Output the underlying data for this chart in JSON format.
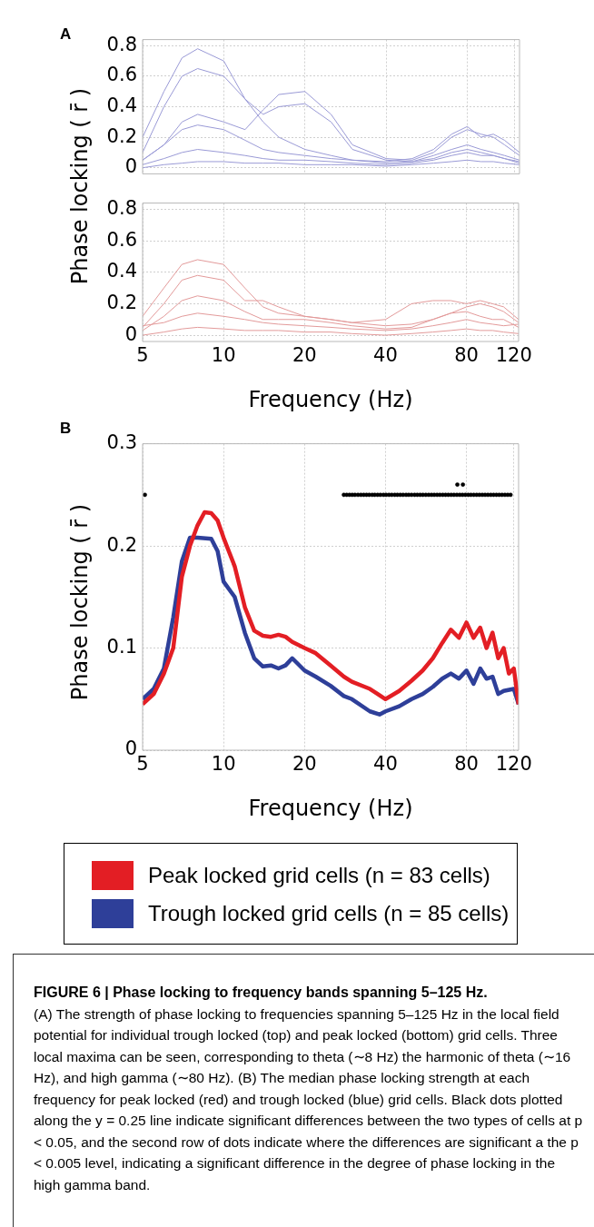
{
  "chart_data": [
    {
      "type": "line",
      "annotations": [
        "A"
      ],
      "ylabel": "Phase locking ( r̄ )",
      "tick_labels": "y",
      "log": "x",
      "grid": true,
      "x": [
        5,
        6,
        7,
        8,
        10,
        12,
        14,
        16,
        20,
        25,
        30,
        40,
        50,
        60,
        70,
        80,
        90,
        100,
        110,
        125
      ],
      "xlim": [
        5,
        125
      ],
      "xticks": [
        5,
        10,
        20,
        40,
        80,
        120
      ],
      "ylim": [
        -0.04,
        0.84
      ],
      "yticks": [
        0,
        0.2,
        0.4,
        0.6,
        0.8
      ],
      "series": [
        {
          "color": "#9a9ad6",
          "values": [
            0.2,
            0.5,
            0.72,
            0.78,
            0.7,
            0.45,
            0.3,
            0.2,
            0.12,
            0.08,
            0.05,
            0.03,
            0.04,
            0.06,
            0.1,
            0.12,
            0.1,
            0.08,
            0.06,
            0.04
          ]
        },
        {
          "color": "#9a9ad6",
          "values": [
            0.1,
            0.4,
            0.6,
            0.65,
            0.6,
            0.45,
            0.35,
            0.4,
            0.42,
            0.3,
            0.12,
            0.05,
            0.04,
            0.08,
            0.12,
            0.15,
            0.12,
            0.1,
            0.08,
            0.05
          ]
        },
        {
          "color": "#9a9ad6",
          "values": [
            0.05,
            0.15,
            0.3,
            0.35,
            0.3,
            0.25,
            0.38,
            0.48,
            0.5,
            0.35,
            0.15,
            0.06,
            0.05,
            0.1,
            0.2,
            0.25,
            0.22,
            0.2,
            0.15,
            0.08
          ]
        },
        {
          "color": "#9a9ad6",
          "values": [
            0.05,
            0.15,
            0.25,
            0.28,
            0.25,
            0.18,
            0.12,
            0.1,
            0.08,
            0.06,
            0.05,
            0.04,
            0.06,
            0.12,
            0.22,
            0.27,
            0.2,
            0.22,
            0.18,
            0.1
          ]
        },
        {
          "color": "#9a9ad6",
          "values": [
            0.02,
            0.06,
            0.1,
            0.12,
            0.1,
            0.08,
            0.06,
            0.05,
            0.05,
            0.04,
            0.03,
            0.02,
            0.03,
            0.05,
            0.08,
            0.1,
            0.08,
            0.08,
            0.06,
            0.03
          ]
        },
        {
          "color": "#9a9ad6",
          "values": [
            0.0,
            0.02,
            0.03,
            0.04,
            0.04,
            0.03,
            0.03,
            0.03,
            0.02,
            0.02,
            0.02,
            0.01,
            0.02,
            0.03,
            0.04,
            0.05,
            0.04,
            0.04,
            0.03,
            0.02
          ]
        }
      ]
    },
    {
      "type": "line",
      "xlabel": "Frequency (Hz)",
      "log": "x",
      "grid": true,
      "x": [
        5,
        6,
        7,
        8,
        10,
        12,
        14,
        16,
        20,
        25,
        30,
        40,
        50,
        60,
        70,
        80,
        90,
        100,
        110,
        125
      ],
      "xlim": [
        5,
        125
      ],
      "xticks": [
        5,
        10,
        20,
        40,
        80,
        120
      ],
      "ylim": [
        -0.04,
        0.84
      ],
      "yticks": [
        0,
        0.2,
        0.4,
        0.6,
        0.8
      ],
      "series": [
        {
          "color": "#e39a9a",
          "values": [
            0.12,
            0.3,
            0.45,
            0.48,
            0.45,
            0.3,
            0.18,
            0.14,
            0.12,
            0.1,
            0.08,
            0.06,
            0.07,
            0.1,
            0.14,
            0.18,
            0.2,
            0.18,
            0.15,
            0.08
          ]
        },
        {
          "color": "#e39a9a",
          "values": [
            0.05,
            0.2,
            0.35,
            0.38,
            0.35,
            0.22,
            0.22,
            0.18,
            0.12,
            0.1,
            0.08,
            0.1,
            0.2,
            0.22,
            0.22,
            0.2,
            0.22,
            0.2,
            0.18,
            0.1
          ]
        },
        {
          "color": "#e39a9a",
          "values": [
            0.03,
            0.12,
            0.22,
            0.25,
            0.22,
            0.15,
            0.1,
            0.1,
            0.1,
            0.08,
            0.06,
            0.04,
            0.05,
            0.1,
            0.14,
            0.15,
            0.12,
            0.1,
            0.1,
            0.05
          ]
        },
        {
          "color": "#e39a9a",
          "values": [
            0.06,
            0.08,
            0.12,
            0.14,
            0.12,
            0.1,
            0.08,
            0.07,
            0.06,
            0.05,
            0.04,
            0.03,
            0.04,
            0.06,
            0.08,
            0.1,
            0.08,
            0.07,
            0.06,
            0.07
          ]
        },
        {
          "color": "#e39a9a",
          "values": [
            0.0,
            0.02,
            0.04,
            0.05,
            0.04,
            0.03,
            0.03,
            0.03,
            0.02,
            0.02,
            0.01,
            0.0,
            0.01,
            0.02,
            0.03,
            0.04,
            0.03,
            0.03,
            0.02,
            0.01
          ]
        }
      ]
    },
    {
      "type": "line",
      "annotations": [
        "B",
        "FIGURE 6 | Phase locking to frequency bands spanning 5–125 Hz.",
        "(A) The strength of phase locking to frequencies spanning 5–125 Hz in the local field potential for individual trough locked (top) and peak locked (bottom) grid cells. Three local maxima can be seen, corresponding to theta (∼8 Hz) the harmonic of theta (∼16 Hz), and high gamma (∼80 Hz). (B) The median phase locking strength at each frequency for peak locked (red) and trough locked (blue) grid cells. Black dots plotted along the y = 0.25 line indicate significant differences between the two types of cells at p < 0.05, and the second row of dots indicate where the differences are significant a the p < 0.005 level, indicating a significant difference in the degree of phase locking in the high gamma band."
      ],
      "ylabel": "Phase locking ( r̄ )",
      "xlabel": "Frequency (Hz)",
      "log": "x",
      "grid": true,
      "legend": "bottom",
      "xlim": [
        5,
        125
      ],
      "xticks": [
        5,
        10,
        20,
        40,
        80,
        120
      ],
      "ylim": [
        0,
        0.3
      ],
      "yticks": [
        0,
        0.1,
        0.2,
        0.3
      ],
      "series": [
        {
          "name": "Peak locked grid cells (n = 83 cells)",
          "color": "#e31e24",
          "x": [
            5,
            5.5,
            6,
            6.5,
            7,
            7.5,
            8,
            8.5,
            9,
            9.5,
            10,
            11,
            12,
            13,
            14,
            15,
            16,
            17,
            18,
            20,
            22,
            25,
            28,
            30,
            35,
            40,
            45,
            50,
            55,
            60,
            65,
            70,
            75,
            80,
            85,
            90,
            95,
            100,
            105,
            110,
            115,
            120,
            125
          ],
          "values": [
            0.045,
            0.055,
            0.075,
            0.1,
            0.17,
            0.2,
            0.22,
            0.233,
            0.232,
            0.225,
            0.208,
            0.18,
            0.14,
            0.117,
            0.112,
            0.111,
            0.113,
            0.111,
            0.106,
            0.1,
            0.095,
            0.083,
            0.072,
            0.067,
            0.06,
            0.05,
            0.058,
            0.068,
            0.078,
            0.09,
            0.105,
            0.118,
            0.11,
            0.125,
            0.11,
            0.12,
            0.1,
            0.115,
            0.09,
            0.1,
            0.075,
            0.08,
            0.045
          ]
        },
        {
          "name": "Trough locked grid cells (n = 85 cells)",
          "color": "#2e3f99",
          "x": [
            5,
            5.5,
            6,
            6.5,
            7,
            7.5,
            8,
            9,
            9.5,
            10,
            11,
            12,
            13,
            14,
            15,
            16,
            17,
            18,
            20,
            22,
            25,
            28,
            30,
            35,
            38,
            40,
            45,
            50,
            55,
            60,
            65,
            70,
            75,
            80,
            85,
            90,
            95,
            100,
            105,
            110,
            120,
            125
          ],
          "values": [
            0.05,
            0.06,
            0.08,
            0.13,
            0.185,
            0.208,
            0.208,
            0.207,
            0.195,
            0.165,
            0.15,
            0.115,
            0.09,
            0.082,
            0.083,
            0.08,
            0.083,
            0.09,
            0.078,
            0.072,
            0.063,
            0.053,
            0.05,
            0.038,
            0.035,
            0.038,
            0.043,
            0.05,
            0.055,
            0.062,
            0.07,
            0.075,
            0.07,
            0.078,
            0.065,
            0.08,
            0.07,
            0.072,
            0.055,
            0.058,
            0.06,
            0.045
          ]
        },
        {
          "type": "scatter",
          "color": "#000000",
          "marker": "circle",
          "x": [
            5.1,
            28,
            28.7,
            29.4,
            30.1,
            30.8,
            31.6,
            32.4,
            33.2,
            34.0,
            34.8,
            35.7,
            36.5,
            37.4,
            38.3,
            39.3,
            40.2,
            41.2,
            42.2,
            43.3,
            44.3,
            45.4,
            46.5,
            47.7,
            48.8,
            50.0,
            51.3,
            52.5,
            53.8,
            55.1,
            56.5,
            57.9,
            59.3,
            60.7,
            62.2,
            63.7,
            65.3,
            66.9,
            68.5,
            70.2,
            71.9,
            73.7,
            75.5,
            77.3,
            79.2,
            81.2,
            83.1,
            85.2,
            87.3,
            89.4,
            91.6,
            93.8,
            96.1,
            98.5,
            100.9,
            103.4,
            105.9,
            108.5,
            111.2,
            113.9,
            116.7
          ],
          "values": [
            0.25,
            0.25,
            0.25,
            0.25,
            0.25,
            0.25,
            0.25,
            0.25,
            0.25,
            0.25,
            0.25,
            0.25,
            0.25,
            0.25,
            0.25,
            0.25,
            0.25,
            0.25,
            0.25,
            0.25,
            0.25,
            0.25,
            0.25,
            0.25,
            0.25,
            0.25,
            0.25,
            0.25,
            0.25,
            0.25,
            0.25,
            0.25,
            0.25,
            0.25,
            0.25,
            0.25,
            0.25,
            0.25,
            0.25,
            0.25,
            0.25,
            0.25,
            0.25,
            0.25,
            0.25,
            0.25,
            0.25,
            0.25,
            0.25,
            0.25,
            0.25,
            0.25,
            0.25,
            0.25,
            0.25,
            0.25,
            0.25,
            0.25,
            0.25,
            0.25,
            0.25
          ]
        },
        {
          "type": "scatter",
          "color": "#000000",
          "marker": "circle",
          "x": [
            74,
            77.6
          ],
          "values": [
            0.26,
            0.26
          ]
        }
      ]
    }
  ]
}
